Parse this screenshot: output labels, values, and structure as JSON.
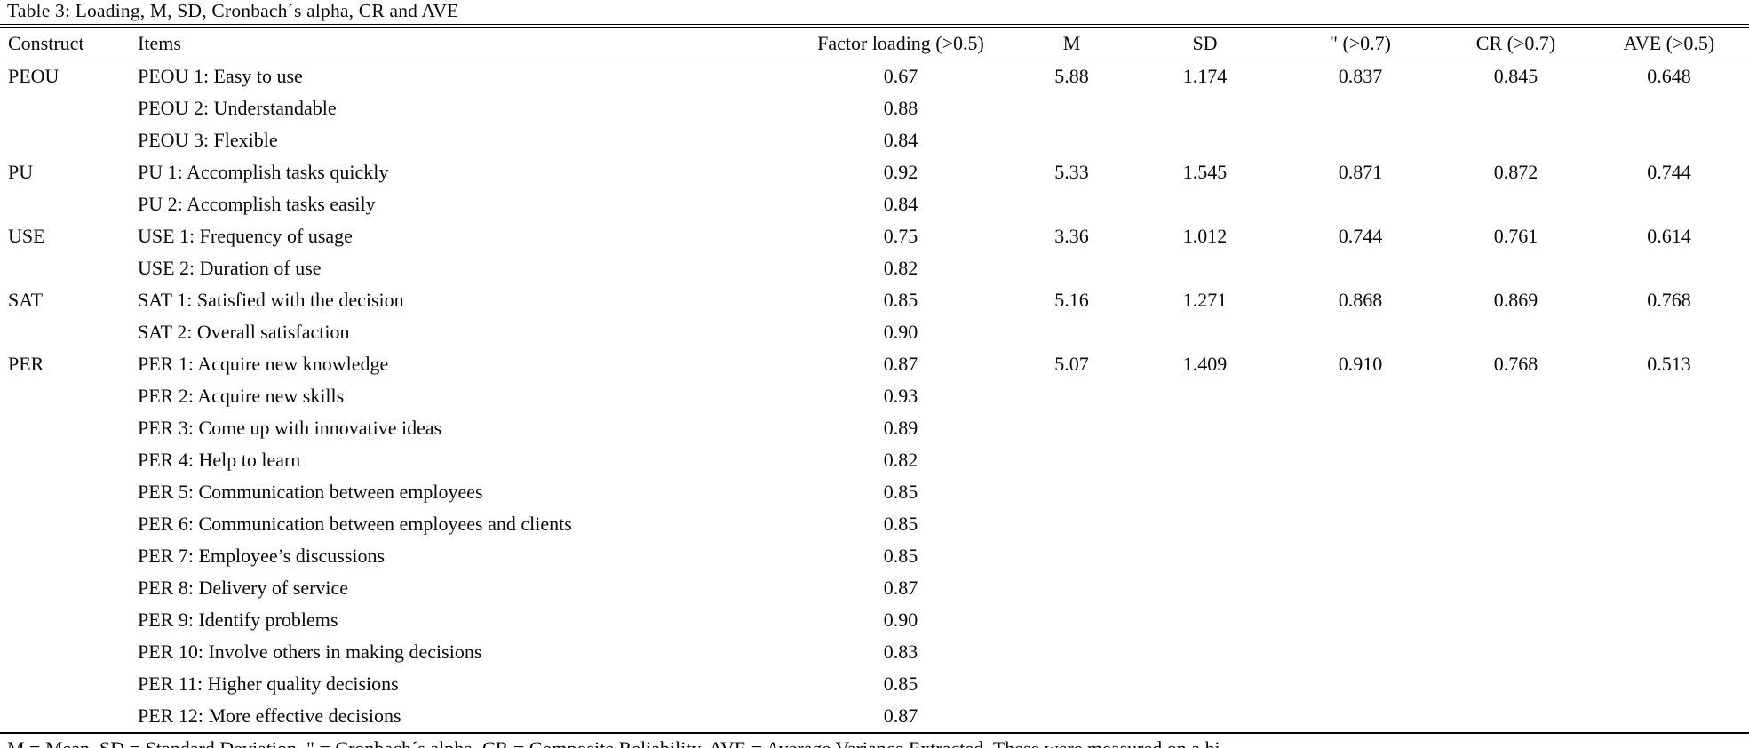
{
  "caption": "Table 3: Loading, M, SD, Cronbach´s alpha, CR and AVE",
  "table": {
    "columns": [
      "Construct",
      "Items",
      "Factor loading (>0.5)",
      "M",
      "SD",
      "\" (>0.7)",
      "CR (>0.7)",
      "AVE (>0.5)"
    ],
    "rows": [
      {
        "construct": "PEOU",
        "item": "PEOU 1: Easy to use",
        "loading": "0.67",
        "m": "5.88",
        "sd": "1.174",
        "alpha": "0.837",
        "cr": "0.845",
        "ave": "0.648"
      },
      {
        "construct": "",
        "item": "PEOU 2: Understandable",
        "loading": "0.88",
        "m": "",
        "sd": "",
        "alpha": "",
        "cr": "",
        "ave": ""
      },
      {
        "construct": "",
        "item": "PEOU 3: Flexible",
        "loading": "0.84",
        "m": "",
        "sd": "",
        "alpha": "",
        "cr": "",
        "ave": ""
      },
      {
        "construct": "PU",
        "item": "PU 1: Accomplish tasks quickly",
        "loading": "0.92",
        "m": "5.33",
        "sd": "1.545",
        "alpha": "0.871",
        "cr": "0.872",
        "ave": "0.744"
      },
      {
        "construct": "",
        "item": "PU 2: Accomplish tasks easily",
        "loading": "0.84",
        "m": "",
        "sd": "",
        "alpha": "",
        "cr": "",
        "ave": ""
      },
      {
        "construct": "USE",
        "item": "USE 1: Frequency of usage",
        "loading": "0.75",
        "m": "3.36",
        "sd": "1.012",
        "alpha": "0.744",
        "cr": "0.761",
        "ave": "0.614"
      },
      {
        "construct": "",
        "item": "USE 2: Duration of use",
        "loading": "0.82",
        "m": "",
        "sd": "",
        "alpha": "",
        "cr": "",
        "ave": ""
      },
      {
        "construct": "SAT",
        "item": "SAT 1: Satisfied with the decision",
        "loading": "0.85",
        "m": "5.16",
        "sd": "1.271",
        "alpha": "0.868",
        "cr": "0.869",
        "ave": "0.768"
      },
      {
        "construct": "",
        "item": "SAT 2: Overall satisfaction",
        "loading": "0.90",
        "m": "",
        "sd": "",
        "alpha": "",
        "cr": "",
        "ave": ""
      },
      {
        "construct": "PER",
        "item": "PER 1: Acquire new knowledge",
        "loading": "0.87",
        "m": "5.07",
        "sd": "1.409",
        "alpha": "0.910",
        "cr": "0.768",
        "ave": "0.513"
      },
      {
        "construct": "",
        "item": "PER 2: Acquire new skills",
        "loading": "0.93",
        "m": "",
        "sd": "",
        "alpha": "",
        "cr": "",
        "ave": ""
      },
      {
        "construct": "",
        "item": "PER 3: Come up with innovative ideas",
        "loading": "0.89",
        "m": "",
        "sd": "",
        "alpha": "",
        "cr": "",
        "ave": ""
      },
      {
        "construct": "",
        "item": "PER 4: Help to learn",
        "loading": "0.82",
        "m": "",
        "sd": "",
        "alpha": "",
        "cr": "",
        "ave": ""
      },
      {
        "construct": "",
        "item": "PER 5: Communication between employees",
        "loading": "0.85",
        "m": "",
        "sd": "",
        "alpha": "",
        "cr": "",
        "ave": ""
      },
      {
        "construct": "",
        "item": "PER 6: Communication between employees and clients",
        "loading": "0.85",
        "m": "",
        "sd": "",
        "alpha": "",
        "cr": "",
        "ave": ""
      },
      {
        "construct": "",
        "item": "PER 7: Employee’s discussions",
        "loading": "0.85",
        "m": "",
        "sd": "",
        "alpha": "",
        "cr": "",
        "ave": ""
      },
      {
        "construct": "",
        "item": "PER 8: Delivery of service",
        "loading": "0.87",
        "m": "",
        "sd": "",
        "alpha": "",
        "cr": "",
        "ave": ""
      },
      {
        "construct": "",
        "item": "PER 9: Identify problems",
        "loading": "0.90",
        "m": "",
        "sd": "",
        "alpha": "",
        "cr": "",
        "ave": ""
      },
      {
        "construct": "",
        "item": "PER 10: Involve others in making decisions",
        "loading": "0.83",
        "m": "",
        "sd": "",
        "alpha": "",
        "cr": "",
        "ave": ""
      },
      {
        "construct": "",
        "item": "PER 11: Higher quality decisions",
        "loading": "0.85",
        "m": "",
        "sd": "",
        "alpha": "",
        "cr": "",
        "ave": ""
      },
      {
        "construct": "",
        "item": "PER 12: More effective decisions",
        "loading": "0.87",
        "m": "",
        "sd": "",
        "alpha": "",
        "cr": "",
        "ave": ""
      }
    ]
  },
  "footnote": "M = Mean, SD = Standard Deviation, \" = Cronbach´s alpha, CR = Composite Reliability, AVE = Average Variance Extracted. These were measured on a hi"
}
